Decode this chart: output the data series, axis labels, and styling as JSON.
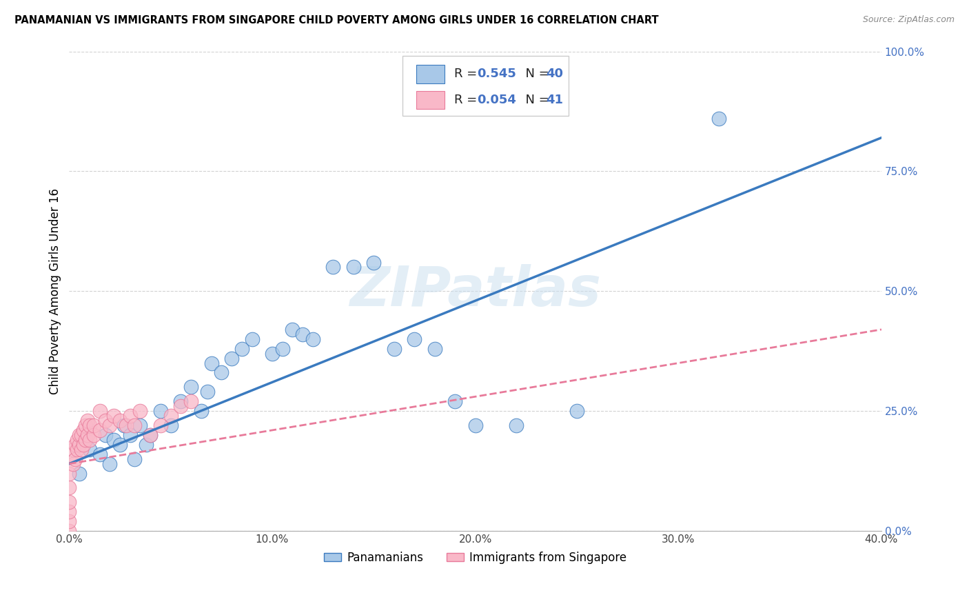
{
  "title": "PANAMANIAN VS IMMIGRANTS FROM SINGAPORE CHILD POVERTY AMONG GIRLS UNDER 16 CORRELATION CHART",
  "source": "Source: ZipAtlas.com",
  "ylabel": "Child Poverty Among Girls Under 16",
  "xlim": [
    0.0,
    0.4
  ],
  "ylim": [
    0.0,
    1.0
  ],
  "xtick_labels": [
    "0.0%",
    "10.0%",
    "20.0%",
    "30.0%",
    "40.0%"
  ],
  "xtick_vals": [
    0.0,
    0.1,
    0.2,
    0.3,
    0.4
  ],
  "ytick_labels": [
    "100.0%",
    "75.0%",
    "50.0%",
    "25.0%",
    "0.0%"
  ],
  "ytick_vals": [
    1.0,
    0.75,
    0.5,
    0.25,
    0.0
  ],
  "blue_R": 0.545,
  "blue_N": 40,
  "pink_R": 0.054,
  "pink_N": 41,
  "blue_color": "#a8c8e8",
  "pink_color": "#f9b8c8",
  "blue_line_color": "#3a7abf",
  "pink_line_color": "#e87a9a",
  "legend_label_blue": "Panamanians",
  "legend_label_pink": "Immigrants from Singapore",
  "watermark": "ZIPatlas",
  "blue_x": [
    0.005,
    0.01,
    0.015,
    0.018,
    0.02,
    0.022,
    0.025,
    0.027,
    0.03,
    0.032,
    0.035,
    0.038,
    0.04,
    0.045,
    0.05,
    0.055,
    0.06,
    0.065,
    0.068,
    0.07,
    0.075,
    0.08,
    0.085,
    0.09,
    0.1,
    0.105,
    0.11,
    0.115,
    0.12,
    0.13,
    0.14,
    0.15,
    0.16,
    0.17,
    0.18,
    0.19,
    0.2,
    0.22,
    0.25,
    0.32
  ],
  "blue_y": [
    0.12,
    0.17,
    0.16,
    0.2,
    0.14,
    0.19,
    0.18,
    0.22,
    0.2,
    0.15,
    0.22,
    0.18,
    0.2,
    0.25,
    0.22,
    0.27,
    0.3,
    0.25,
    0.29,
    0.35,
    0.33,
    0.36,
    0.38,
    0.4,
    0.37,
    0.38,
    0.42,
    0.41,
    0.4,
    0.55,
    0.55,
    0.56,
    0.38,
    0.4,
    0.38,
    0.27,
    0.22,
    0.22,
    0.25,
    0.86
  ],
  "pink_x": [
    0.0,
    0.0,
    0.0,
    0.0,
    0.0,
    0.0,
    0.002,
    0.002,
    0.003,
    0.003,
    0.004,
    0.004,
    0.005,
    0.005,
    0.006,
    0.006,
    0.007,
    0.007,
    0.008,
    0.008,
    0.009,
    0.009,
    0.01,
    0.01,
    0.012,
    0.012,
    0.015,
    0.015,
    0.018,
    0.02,
    0.022,
    0.025,
    0.028,
    0.03,
    0.032,
    0.035,
    0.04,
    0.045,
    0.05,
    0.055,
    0.06
  ],
  "pink_y": [
    0.0,
    0.02,
    0.04,
    0.06,
    0.09,
    0.12,
    0.14,
    0.17,
    0.15,
    0.18,
    0.17,
    0.19,
    0.18,
    0.2,
    0.17,
    0.2,
    0.18,
    0.21,
    0.19,
    0.22,
    0.2,
    0.23,
    0.19,
    0.22,
    0.2,
    0.22,
    0.21,
    0.25,
    0.23,
    0.22,
    0.24,
    0.23,
    0.22,
    0.24,
    0.22,
    0.25,
    0.2,
    0.22,
    0.24,
    0.26,
    0.27
  ],
  "blue_trend_x": [
    0.0,
    0.4
  ],
  "blue_trend_y": [
    0.14,
    0.82
  ],
  "pink_trend_x": [
    0.0,
    0.4
  ],
  "pink_trend_y": [
    0.14,
    0.42
  ]
}
